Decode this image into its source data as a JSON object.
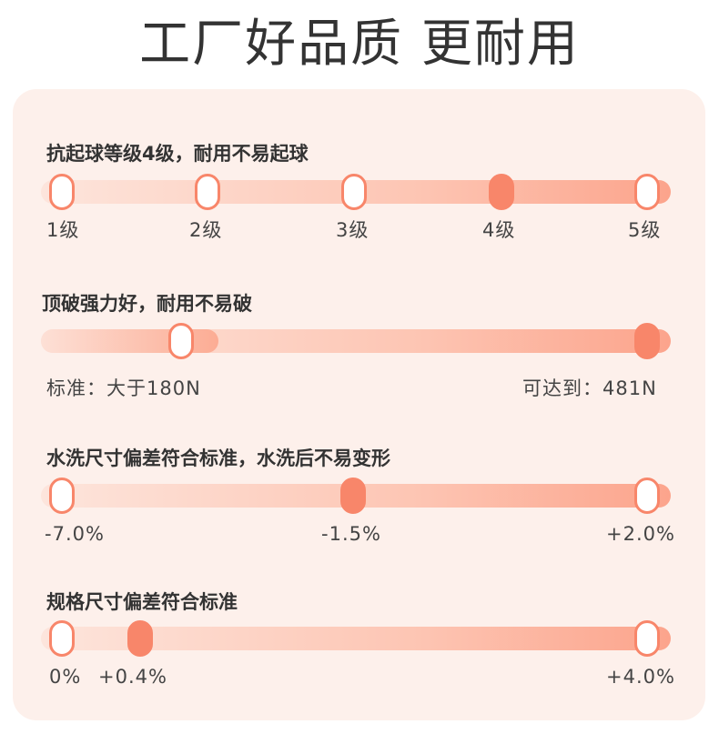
{
  "headline": "工厂好品质 更耐用",
  "accent_color": "#f8866a",
  "panel_color": "#fdf0eb",
  "sections": [
    {
      "title": "抗起球等级4级，耐用不易起球",
      "labels": [
        "1级",
        "2级",
        "3级",
        "4级",
        "5级"
      ],
      "active_index": 3
    },
    {
      "title": "顶破强力好，耐用不易破",
      "labels": [
        "标准：大于180N",
        "可达到：481N"
      ]
    },
    {
      "title": "水洗尺寸偏差符合标准，水洗后不易变形",
      "labels": [
        "-7.0%",
        "-1.5%",
        "+2.0%"
      ],
      "active_index": 1
    },
    {
      "title": "规格尺寸偏差符合标准",
      "labels": [
        "0%",
        "+0.4%",
        "+4.0%"
      ],
      "active_index": 1
    }
  ]
}
